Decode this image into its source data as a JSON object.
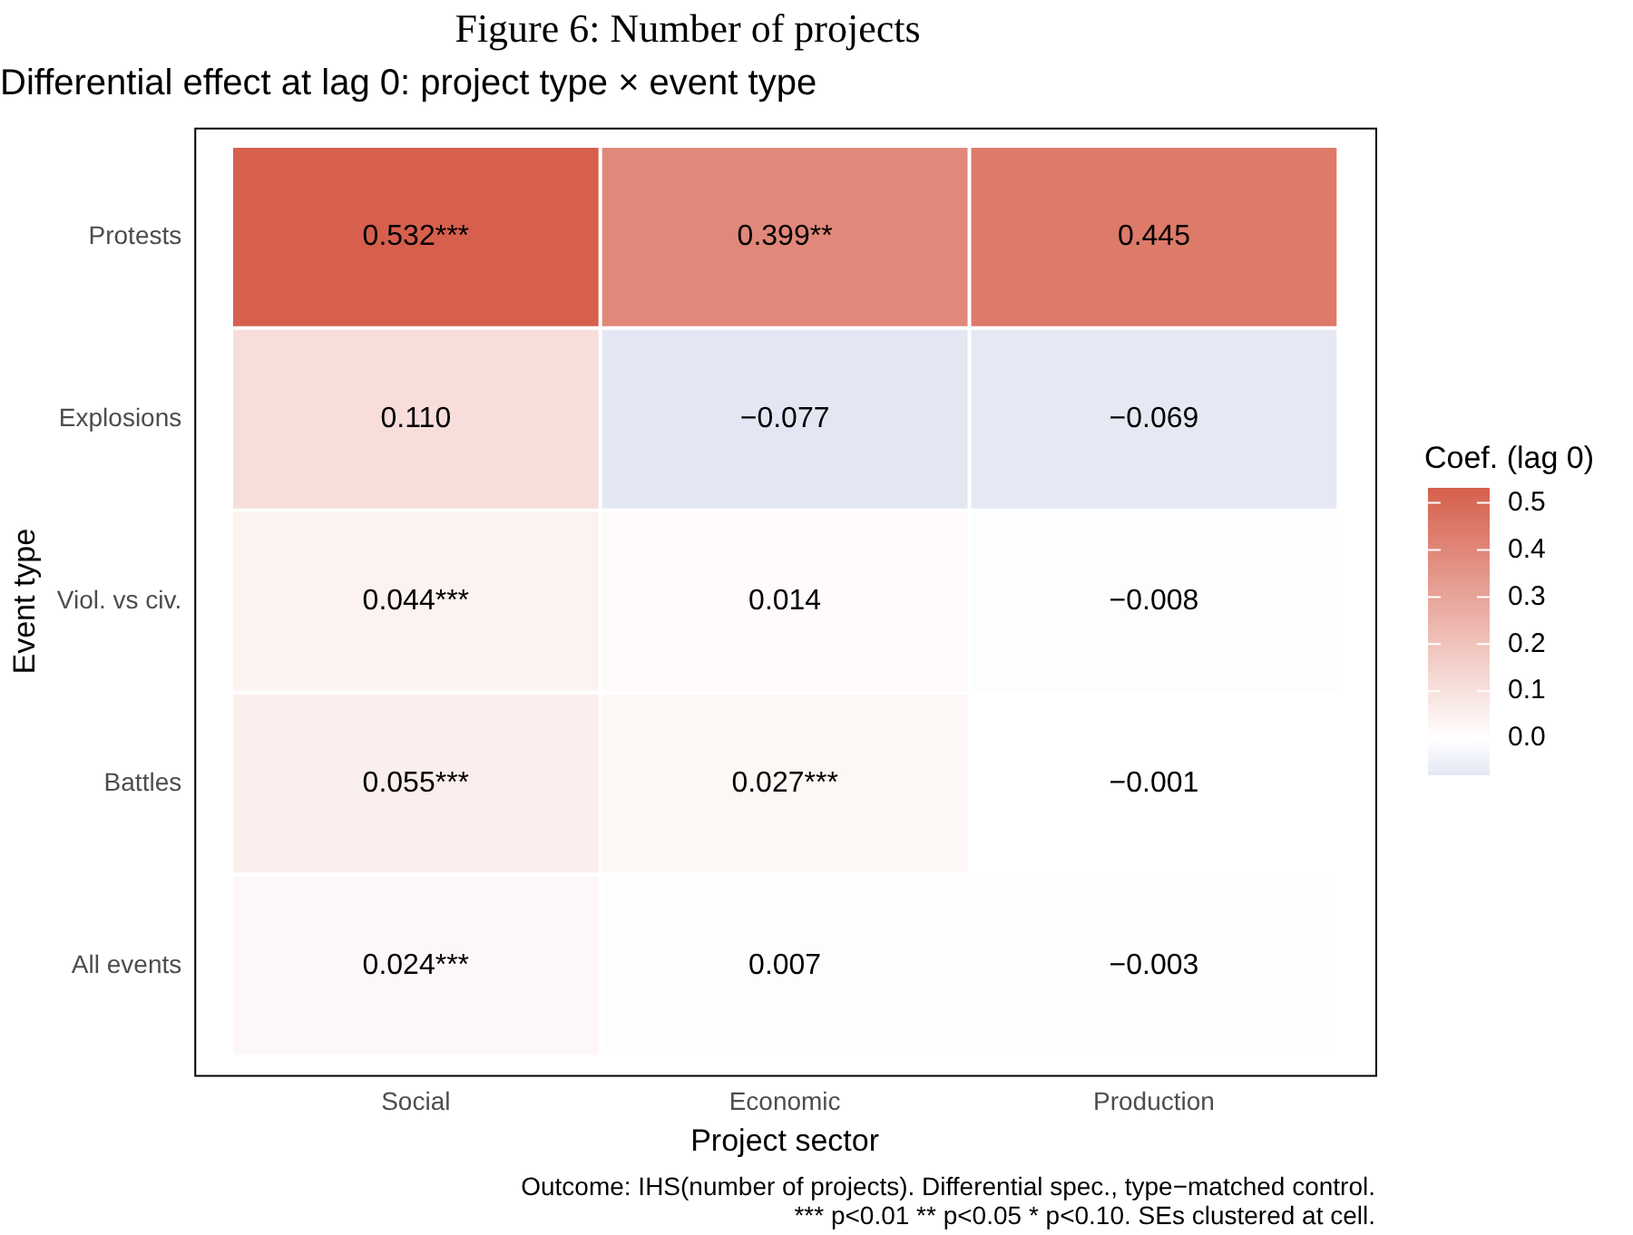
{
  "chart_data": {
    "type": "heatmap",
    "title": "Figure 6: Number of projects",
    "subtitle": "Differential effect at lag 0: project type × event type",
    "xlabel": "Project sector",
    "ylabel": "Event type",
    "clabel": "Coef. (lag 0)",
    "categories": [
      "Social",
      "Economic",
      "Production"
    ],
    "y_categories": [
      "Protests",
      "Explosions",
      "Viol. vs civ.",
      "Battles",
      "All events"
    ],
    "cells": [
      [
        0.532,
        0.399,
        0.445
      ],
      [
        0.11,
        -0.077,
        -0.069
      ],
      [
        0.044,
        0.014,
        -0.008
      ],
      [
        0.055,
        0.027,
        -0.001
      ],
      [
        0.024,
        0.007,
        -0.003
      ]
    ],
    "cell_labels": [
      [
        "0.532***",
        "0.399**",
        "0.445"
      ],
      [
        "0.110",
        "−0.077",
        "−0.069"
      ],
      [
        "0.044***",
        "0.014",
        "−0.008"
      ],
      [
        "0.055***",
        "0.027***",
        "−0.001"
      ],
      [
        "0.024***",
        "0.007",
        "−0.003"
      ]
    ],
    "clim": [
      -0.077,
      0.532
    ],
    "cticks": [
      {
        "value": 0,
        "label": "0.0"
      },
      0.1,
      0.2,
      0.3,
      0.4,
      0.5
    ],
    "annotations": [
      "Outcome: IHS(number of projects). Differential spec., type−matched control.",
      "*** p<0.01 ** p<0.05 * p<0.10. SEs clustered at cell."
    ]
  }
}
